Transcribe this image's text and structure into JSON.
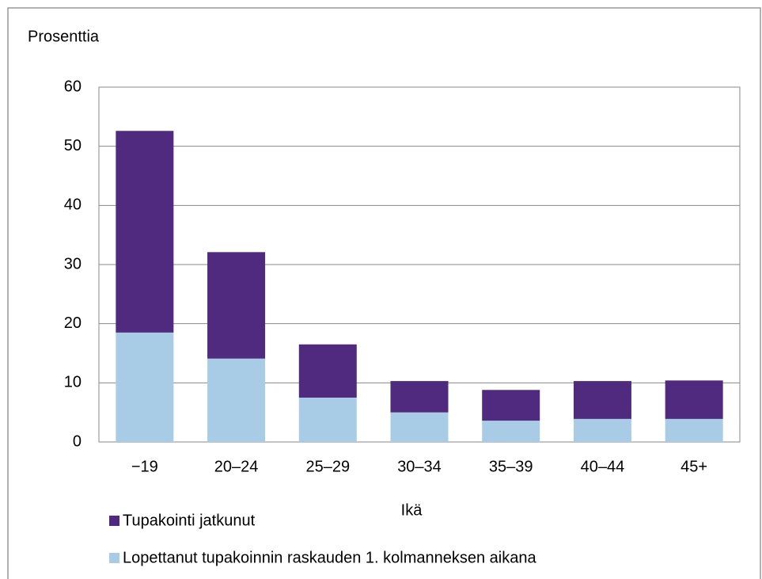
{
  "chart_data": {
    "type": "stacked_bar",
    "y_axis_label": "Prosenttia",
    "x_axis_label": "Ikä",
    "categories": [
      "−19",
      "20–24",
      "25–29",
      "30–34",
      "35–39",
      "40–44",
      "45+"
    ],
    "series": [
      {
        "name": "Tupakointi jatkunut",
        "color": "#4f2a7e",
        "values": [
          34.1,
          18.0,
          9.0,
          5.3,
          5.2,
          6.4,
          6.5
        ]
      },
      {
        "name": "Lopettanut tupakoinnin raskauden 1. kolmanneksen aikana",
        "color": "#a9cce6",
        "values": [
          18.5,
          14.1,
          7.5,
          5.0,
          3.6,
          3.9,
          3.9
        ]
      }
    ],
    "ylim": [
      0,
      60
    ],
    "yticks": [
      0,
      10,
      20,
      30,
      40,
      50,
      60
    ],
    "grid": true
  }
}
